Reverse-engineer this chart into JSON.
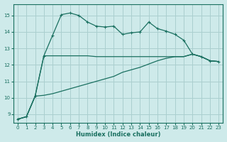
{
  "xlabel": "Humidex (Indice chaleur)",
  "ylabel": "",
  "background_color": "#ceeaea",
  "grid_color": "#aacfcf",
  "line_color": "#1a7060",
  "xlim": [
    -0.5,
    23.5
  ],
  "ylim": [
    8.5,
    15.7
  ],
  "yticks": [
    9,
    10,
    11,
    12,
    13,
    14,
    15
  ],
  "xticks": [
    0,
    1,
    2,
    3,
    4,
    5,
    6,
    7,
    8,
    9,
    10,
    11,
    12,
    13,
    14,
    15,
    16,
    17,
    18,
    19,
    20,
    21,
    22,
    23
  ],
  "line1_x": [
    0,
    1,
    2,
    3,
    4,
    5,
    6,
    7,
    8,
    9,
    10,
    11,
    12,
    13,
    14,
    15,
    16,
    17,
    18,
    19,
    20,
    21,
    22,
    23
  ],
  "line1_y": [
    8.7,
    8.85,
    10.1,
    12.55,
    13.8,
    15.05,
    15.15,
    15.0,
    14.6,
    14.35,
    14.3,
    14.35,
    13.85,
    13.95,
    14.0,
    14.6,
    14.2,
    14.05,
    13.85,
    13.5,
    12.65,
    12.5,
    12.25,
    12.2
  ],
  "line2_x": [
    0,
    1,
    2,
    3,
    4,
    5,
    6,
    7,
    8,
    9,
    10,
    11,
    12,
    13,
    14,
    15,
    16,
    17,
    18,
    19,
    20,
    21,
    22,
    23
  ],
  "line2_y": [
    8.7,
    8.85,
    10.1,
    12.55,
    12.55,
    12.55,
    12.55,
    12.55,
    12.55,
    12.5,
    12.5,
    12.5,
    12.5,
    12.5,
    12.5,
    12.5,
    12.5,
    12.5,
    12.5,
    12.5,
    12.65,
    12.5,
    12.25,
    12.2
  ],
  "line3_x": [
    0,
    1,
    2,
    3,
    4,
    5,
    6,
    7,
    8,
    9,
    10,
    11,
    12,
    13,
    14,
    15,
    16,
    17,
    18,
    19,
    20,
    21,
    22,
    23
  ],
  "line3_y": [
    8.7,
    8.85,
    10.1,
    10.15,
    10.25,
    10.4,
    10.55,
    10.7,
    10.85,
    11.0,
    11.15,
    11.3,
    11.55,
    11.7,
    11.85,
    12.05,
    12.25,
    12.4,
    12.5,
    12.5,
    12.65,
    12.5,
    12.25,
    12.2
  ]
}
